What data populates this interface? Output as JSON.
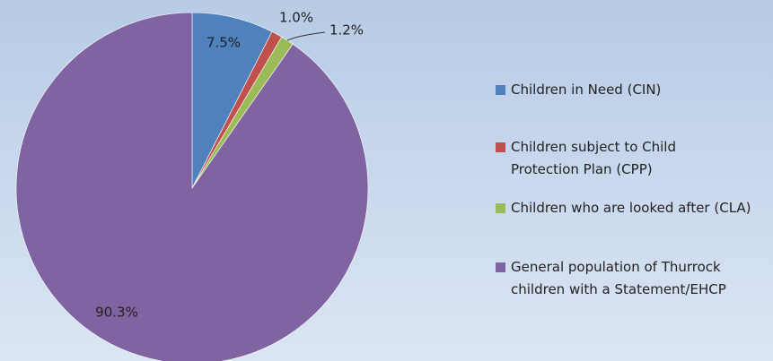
{
  "chart_data": {
    "type": "pie",
    "categories": [
      "Children in Need (CIN)",
      "Children subject to Child Protection Plan (CPP)",
      "Children who are looked after (CLA)",
      "General population of Thurrock children with a Statement/EHCP"
    ],
    "values": [
      7.5,
      1.0,
      1.2,
      90.3
    ],
    "value_labels": [
      "7.5%",
      "1.0%",
      "1.2%",
      "90.3%"
    ],
    "colors": [
      "#4f81bd",
      "#c0504d",
      "#9bbb59",
      "#8064a2"
    ],
    "legend": "right"
  }
}
